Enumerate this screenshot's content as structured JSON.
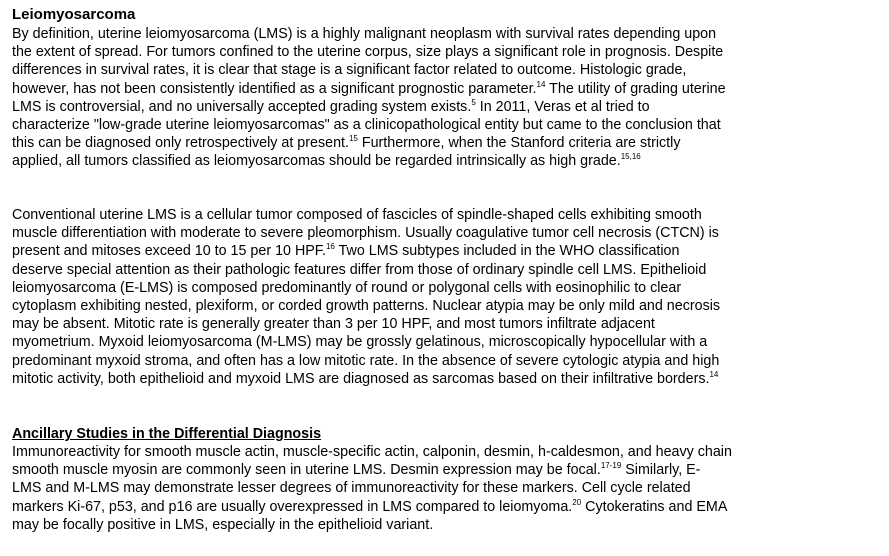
{
  "heading": "Leiomyosarcoma",
  "paragraph1": [
    {
      "t": "By definition, uterine leiomyosarcoma (LMS) is a highly malignant neoplasm with survival rates depending upon"
    },
    {
      "t": "the extent of spread. For tumors confined to the uterine corpus, size plays a significant role in prognosis. Despite"
    },
    {
      "t": "differences in survival rates, it is clear that stage is a significant factor related to outcome. Histologic grade,"
    },
    {
      "t": "however, has not been consistently identified as a significant prognostic parameter.",
      "sup": "14",
      "t2": " The utility of grading uterine"
    },
    {
      "t": "LMS is controversial, and no universally accepted grading system exists.",
      "sup": "5",
      "t2": " In 2011, Veras et al tried to"
    },
    {
      "t": "characterize \"low-grade uterine leiomyosarcomas\" as a clinicopathological entity but came to the conclusion that"
    },
    {
      "t": "this can be diagnosed only retrospectively at present.",
      "sup": "15",
      "t2": "  Furthermore, when the Stanford criteria are strictly"
    },
    {
      "t": "applied, all tumors classified as leiomyosarcomas should be regarded intrinsically as high grade.",
      "sup": "15,16"
    }
  ],
  "paragraph2": [
    {
      "t": "Conventional uterine LMS is a cellular tumor composed of fascicles of spindle-shaped cells exhibiting smooth"
    },
    {
      "t": "muscle differentiation with moderate to severe pleomorphism. Usually coagulative tumor cell necrosis (CTCN) is"
    },
    {
      "t": "present and mitoses exceed 10 to 15 per 10 HPF.",
      "sup": "16",
      "t2": " Two LMS subtypes included in the WHO classification"
    },
    {
      "t": "deserve special attention as their pathologic features differ from those of ordinary spindle cell LMS. Epithelioid"
    },
    {
      "t": "leiomyosarcoma (E-LMS) is composed predominantly of round or polygonal cells with eosinophilic to clear"
    },
    {
      "t": "cytoplasm exhibiting nested, plexiform, or corded growth patterns. Nuclear atypia may be only mild and necrosis"
    },
    {
      "t": "may be absent. Mitotic rate is generally greater than 3 per 10 HPF, and most tumors infiltrate adjacent"
    },
    {
      "t": "myometrium. Myxoid leiomyosarcoma (M-LMS) may be grossly gelatinous, microscopically hypocellular with a"
    },
    {
      "t": "predominant myxoid stroma, and often has a low mitotic rate. In the absence of severe cytologic atypia and high"
    },
    {
      "t": "mitotic activity, both epithelioid and myxoid LMS are diagnosed as sarcomas based on their infiltrative borders.",
      "sup": "14"
    }
  ],
  "subheading": "Ancillary Studies in the Differential Diagnosis",
  "paragraph3": [
    {
      "t": "Immunoreactivity for smooth muscle actin, muscle-specific actin, calponin, desmin, h-caldesmon, and heavy chain"
    },
    {
      "t": "smooth muscle myosin are commonly seen in uterine LMS. Desmin expression may be focal.",
      "sup": "17-19",
      "t2": " Similarly, E-"
    },
    {
      "t": "LMS and M-LMS may demonstrate lesser degrees of immunoreactivity for these markers. Cell cycle related"
    },
    {
      "t": "markers Ki-67, p53, and p16 are usually overexpressed in LMS compared to leiomyoma.",
      "sup": "20",
      "t2": " Cytokeratins and EMA"
    },
    {
      "t": "may be focally positive in LMS, especially in the epithelioid variant."
    }
  ]
}
